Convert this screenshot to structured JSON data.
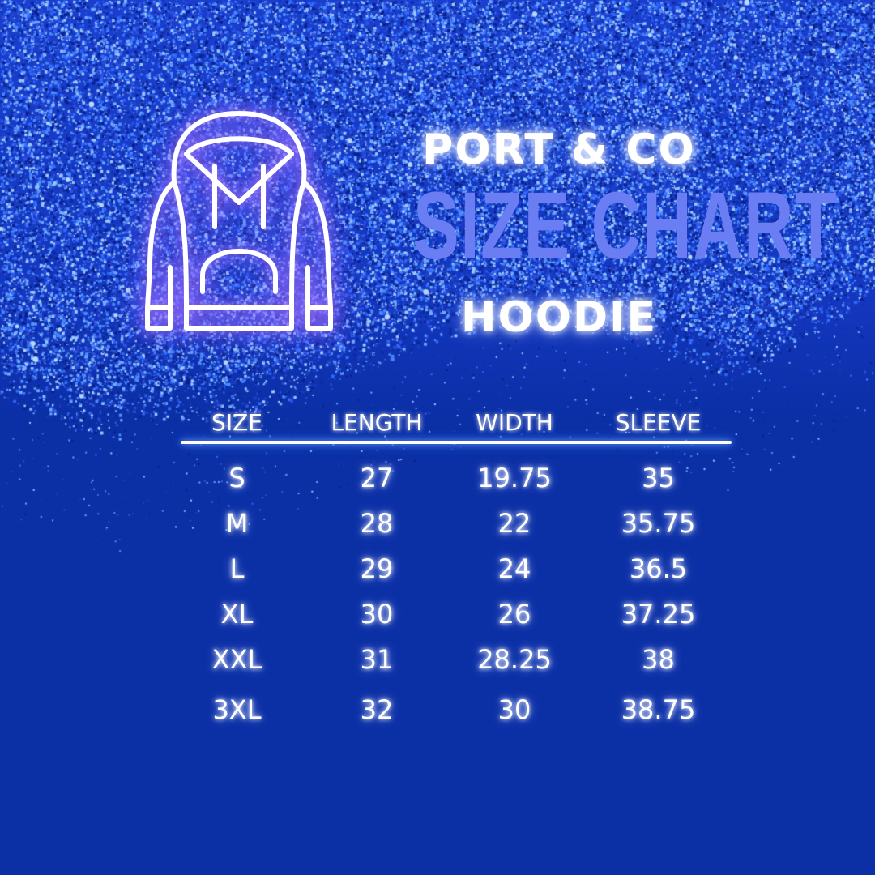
{
  "brand": "PORT & CO",
  "title": "SIZE CHART",
  "product": "HOODIE",
  "icon": "hoodie-icon",
  "colors": {
    "background": "#0b2fa5",
    "title": "#6a7df2",
    "glow": "#9a6cff"
  },
  "table": {
    "headers": [
      "SIZE",
      "LENGTH",
      "WIDTH",
      "SLEEVE"
    ],
    "rows": [
      [
        "S",
        "27",
        "19.75",
        "35"
      ],
      [
        "M",
        "28",
        "22",
        "35.75"
      ],
      [
        "L",
        "29",
        "24",
        "36.5"
      ],
      [
        "XL",
        "30",
        "26",
        "37.25"
      ],
      [
        "XXL",
        "31",
        "28.25",
        "38"
      ],
      [
        "3XL",
        "32",
        "30",
        "38.75"
      ]
    ]
  }
}
